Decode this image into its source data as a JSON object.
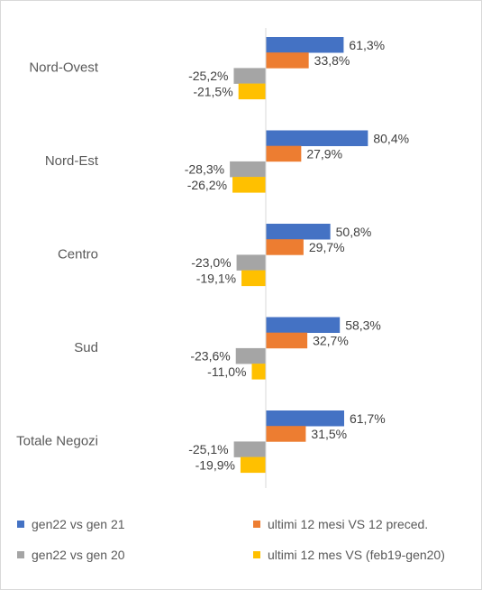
{
  "chart_data": {
    "type": "bar",
    "orientation": "horizontal",
    "categories": [
      "Nord-Ovest",
      "Nord-Est",
      "Centro",
      "Sud",
      "Totale Negozi"
    ],
    "series": [
      {
        "name": "gen22 vs gen 21",
        "color": "#4472C4",
        "values": [
          61.3,
          80.4,
          50.8,
          58.3,
          61.7
        ],
        "labels": [
          "61,3%",
          "80,4%",
          "50,8%",
          "58,3%",
          "61,7%"
        ]
      },
      {
        "name": "ultimi 12 mesi VS 12 preced.",
        "color": "#ED7D31",
        "values": [
          33.8,
          27.9,
          29.7,
          32.7,
          31.5
        ],
        "labels": [
          "33,8%",
          "27,9%",
          "29,7%",
          "32,7%",
          "31,5%"
        ]
      },
      {
        "name": "gen22 vs gen 20",
        "color": "#A5A5A5",
        "values": [
          -25.2,
          -28.3,
          -23.0,
          -23.6,
          -25.1
        ],
        "labels": [
          "-25,2%",
          "-28,3%",
          "-23,0%",
          "-23,6%",
          "-25,1%"
        ]
      },
      {
        "name": "ultimi 12 mes VS (feb19-gen20)",
        "color": "#FFC000",
        "values": [
          -21.5,
          -26.2,
          -19.1,
          -11.0,
          -19.9
        ],
        "labels": [
          "-21,5%",
          "-26,2%",
          "-19,1%",
          "-11,0%",
          "-19,9%"
        ]
      }
    ],
    "axis_line_color": "#d9d9d9",
    "grid": false,
    "legend_position": "bottom"
  }
}
